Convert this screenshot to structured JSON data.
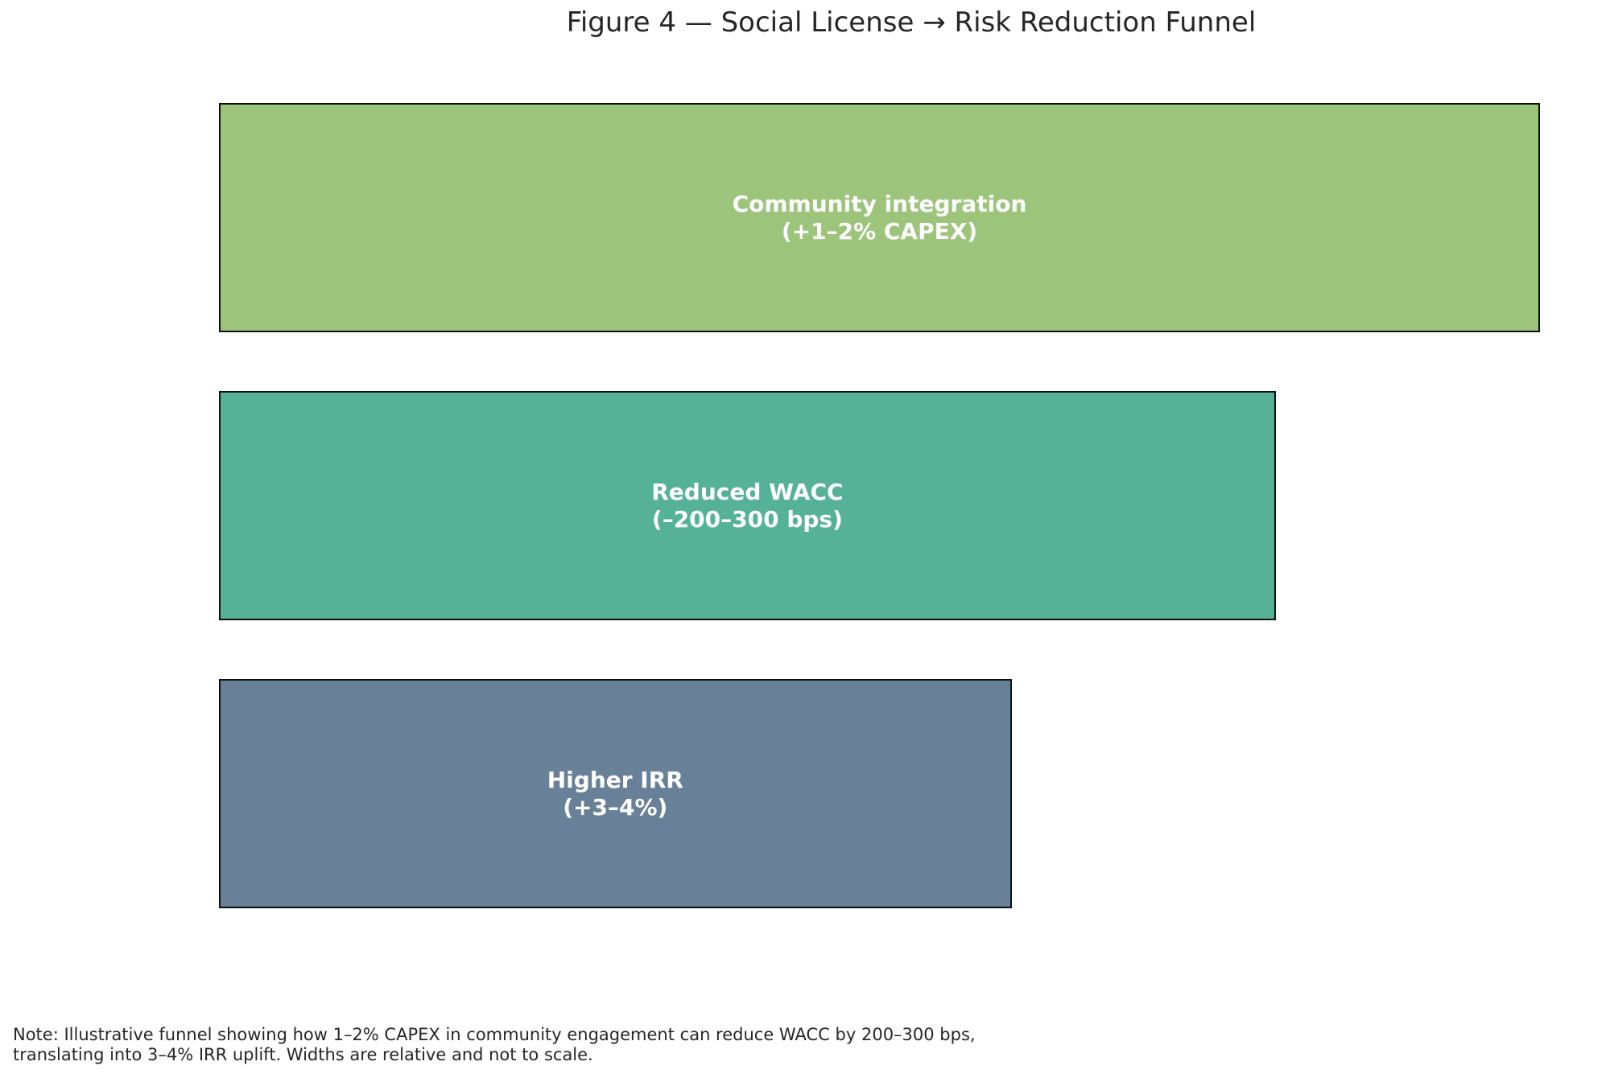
{
  "title": "Figure 4 — Social License → Risk Reduction Funnel",
  "chart_data": {
    "type": "funnel",
    "title": "Figure 4 — Social License → Risk Reduction Funnel",
    "stages": [
      {
        "label": "Community integration\n(+1–2% CAPEX)",
        "relative_width": 1.0,
        "color": "#9cc57b"
      },
      {
        "label": "Reduced WACC\n(–200–300 bps)",
        "relative_width": 0.8,
        "color": "#56b297"
      },
      {
        "label": "Higher IRR\n(+3–4%)",
        "relative_width": 0.6,
        "color": "#688198"
      }
    ]
  },
  "note": "Note: Illustrative funnel showing how 1–2% CAPEX in community engagement can reduce WACC by 200–300 bps,\ntranslating into 3–4% IRR uplift. Widths are relative and not to scale."
}
